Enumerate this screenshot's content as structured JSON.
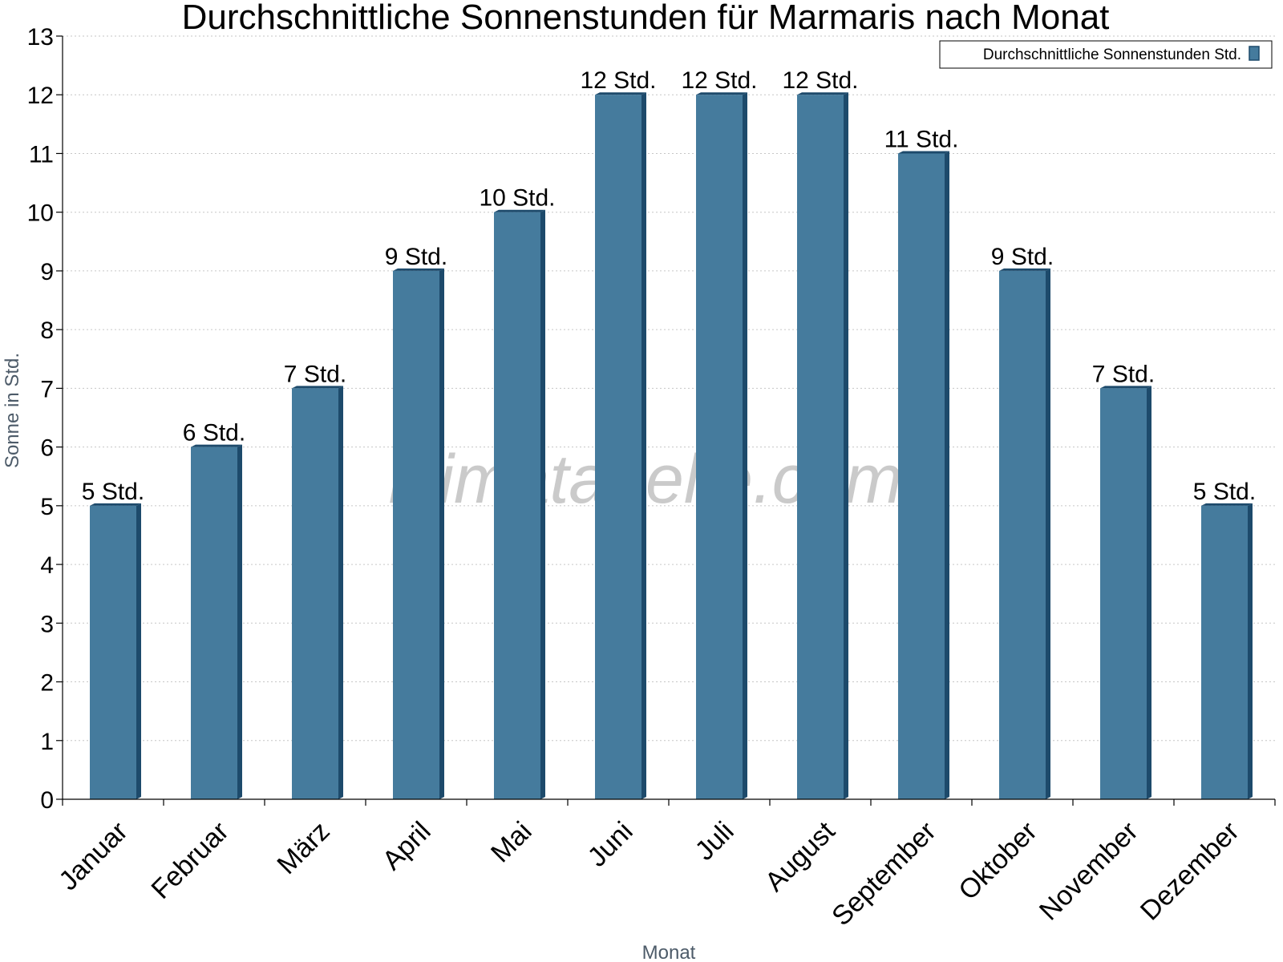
{
  "chart_data": {
    "type": "bar",
    "title": "Durchschnittliche Sonnenstunden für Marmaris nach Monat",
    "xlabel": "Monat",
    "ylabel": "Sonne in Std.",
    "categories": [
      "Januar",
      "Februar",
      "März",
      "April",
      "Mai",
      "Juni",
      "Juli",
      "August",
      "September",
      "Oktober",
      "November",
      "Dezember"
    ],
    "series": [
      {
        "name": "Durchschnittliche Sonnenstunden Std.",
        "values": [
          5,
          6,
          7,
          9,
          10,
          12,
          12,
          12,
          11,
          9,
          7,
          5
        ],
        "data_labels": [
          "5 Std.",
          "6 Std.",
          "7 Std.",
          "9 Std.",
          "10 Std.",
          "12 Std.",
          "12 Std.",
          "12 Std.",
          "11 Std.",
          "9 Std.",
          "7 Std.",
          "5 Std."
        ],
        "color": "#457b9d",
        "side_color": "#1d4a6b"
      }
    ],
    "ylim": [
      0,
      13
    ],
    "yticks": [
      "0",
      "1",
      "2",
      "3",
      "4",
      "5",
      "6",
      "7",
      "8",
      "9",
      "10",
      "11",
      "12",
      "13"
    ],
    "grid": true,
    "legend_position": "top-right"
  },
  "watermark": "klimatabelle.com"
}
